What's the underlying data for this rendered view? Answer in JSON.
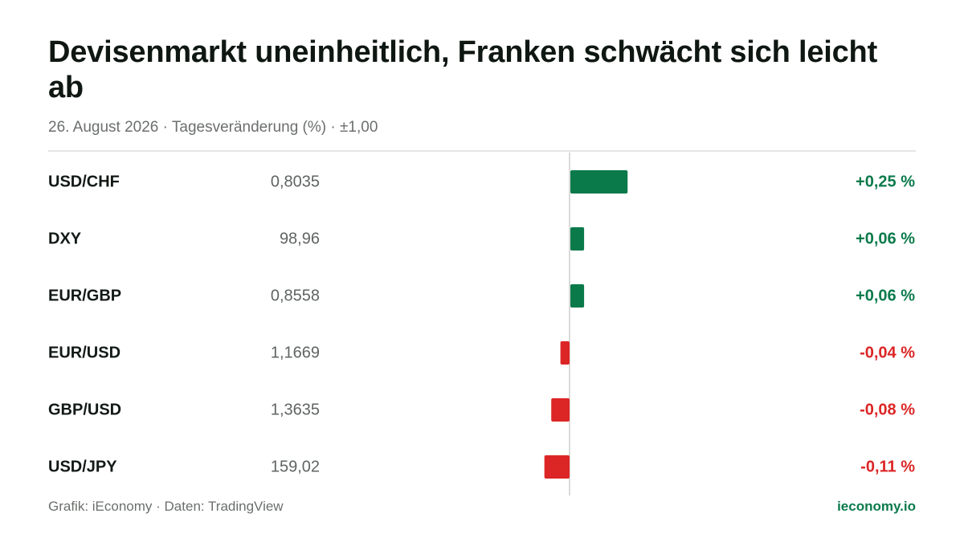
{
  "title": "Devisenmarkt uneinheitlich, Franken schwächt sich leicht ab",
  "subtitle": "26. August 2026 · Tagesveränderung (%) · ±1,00",
  "footer": {
    "source": "Grafik: iEconomy · Daten: TradingView",
    "brand": "ieconomy.io"
  },
  "colors": {
    "positive": "#0b7a4b",
    "negative": "#dc2626",
    "axis": "#d9dbd9"
  },
  "chart_data": {
    "type": "bar",
    "orientation": "horizontal",
    "title": "Devisenmarkt uneinheitlich, Franken schwächt sich leicht ab",
    "subtitle": "26. August 2026 · Tagesveränderung (%) · ±1,00",
    "categories": [
      "USD/CHF",
      "DXY",
      "EUR/GBP",
      "EUR/USD",
      "GBP/USD",
      "USD/JPY"
    ],
    "rates": [
      "0,8035",
      "98,96",
      "0,8558",
      "1,1669",
      "1,3635",
      "159,02"
    ],
    "values": [
      0.25,
      0.06,
      0.06,
      -0.04,
      -0.08,
      -0.11
    ],
    "change_labels": [
      "+0,25 %",
      "+0,06 %",
      "+0,06 %",
      "-0,04 %",
      "-0,08 %",
      "-0,11 %"
    ],
    "xlim": [
      -1,
      1
    ],
    "grid": false,
    "legend": "none"
  }
}
